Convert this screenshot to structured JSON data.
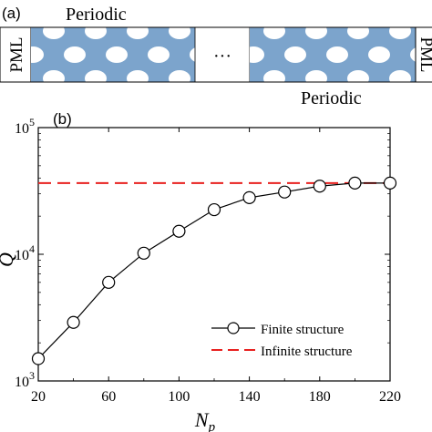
{
  "panel_a": {
    "label": "(a)",
    "top_label": "Periodic",
    "bottom_label": "Periodic",
    "left_label": "PML",
    "right_label": "PML",
    "gap_symbol": "···",
    "colors": {
      "slab": "#7ca4cc",
      "hole": "#ffffff"
    }
  },
  "panel_b": {
    "label": "(b)"
  },
  "chart_data": {
    "type": "line",
    "xlabel_main": "N",
    "xlabel_sub": "p",
    "ylabel": "Q",
    "xlim": [
      20,
      220
    ],
    "ylim_log10": [
      3,
      5
    ],
    "yscale": "log",
    "x_ticks": [
      20,
      60,
      100,
      140,
      180,
      220
    ],
    "y_ticks": [
      {
        "base": "10",
        "exp": "3",
        "value": 1000
      },
      {
        "base": "10",
        "exp": "4",
        "value": 10000
      },
      {
        "base": "10",
        "exp": "5",
        "value": 100000
      }
    ],
    "grid": false,
    "legend_position": "bottom-right",
    "series": [
      {
        "name": "Finite structure",
        "style": "solid-line-circle-markers",
        "color": "#000000",
        "x": [
          20,
          40,
          60,
          80,
          100,
          120,
          140,
          160,
          180,
          200,
          220
        ],
        "y": [
          1500,
          2900,
          6000,
          10200,
          15200,
          22500,
          28000,
          31000,
          34500,
          36500,
          36500
        ]
      },
      {
        "name": "Infinite structure",
        "style": "dashed-line",
        "color": "#e8201f",
        "x": [
          20,
          220
        ],
        "y": [
          36500,
          36500
        ]
      }
    ]
  }
}
